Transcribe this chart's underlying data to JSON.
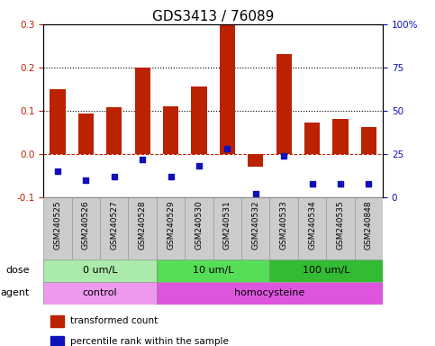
{
  "title": "GDS3413 / 76089",
  "samples": [
    "GSM240525",
    "GSM240526",
    "GSM240527",
    "GSM240528",
    "GSM240529",
    "GSM240530",
    "GSM240531",
    "GSM240532",
    "GSM240533",
    "GSM240534",
    "GSM240535",
    "GSM240848"
  ],
  "transformed_count": [
    0.15,
    0.093,
    0.108,
    0.2,
    0.11,
    0.155,
    0.3,
    -0.03,
    0.23,
    0.072,
    0.08,
    0.062
  ],
  "percentile_rank_pct": [
    15,
    10,
    12,
    22,
    12,
    18,
    28,
    2,
    24,
    8,
    8,
    8
  ],
  "bar_color": "#BB2200",
  "dot_color": "#1111BB",
  "ylim_left": [
    -0.1,
    0.3
  ],
  "ylim_right": [
    0,
    100
  ],
  "yticks_left": [
    -0.1,
    0.0,
    0.1,
    0.2,
    0.3
  ],
  "yticks_right": [
    0,
    25,
    50,
    75,
    100
  ],
  "hline_y": 0.0,
  "dotted_lines": [
    0.1,
    0.2
  ],
  "dose_groups": [
    {
      "label": "0 um/L",
      "start": 0,
      "end": 4,
      "color": "#AAEAAA"
    },
    {
      "label": "10 um/L",
      "start": 4,
      "end": 8,
      "color": "#55DD55"
    },
    {
      "label": "100 um/L",
      "start": 8,
      "end": 12,
      "color": "#33BB33"
    }
  ],
  "agent_groups": [
    {
      "label": "control",
      "start": 0,
      "end": 4,
      "color": "#EE99EE"
    },
    {
      "label": "homocysteine",
      "start": 4,
      "end": 12,
      "color": "#DD55DD"
    }
  ],
  "legend_items": [
    {
      "label": "transformed count",
      "color": "#BB2200"
    },
    {
      "label": "percentile rank within the sample",
      "color": "#1111BB"
    }
  ],
  "dose_label": "dose",
  "agent_label": "agent",
  "bar_width": 0.55,
  "background_color": "#FFFFFF",
  "sample_box_color": "#CCCCCC",
  "sample_box_edge": "#999999",
  "title_fontsize": 11,
  "tick_fontsize": 7.5,
  "sample_fontsize": 6.5,
  "row_fontsize": 8,
  "legend_fontsize": 7.5
}
